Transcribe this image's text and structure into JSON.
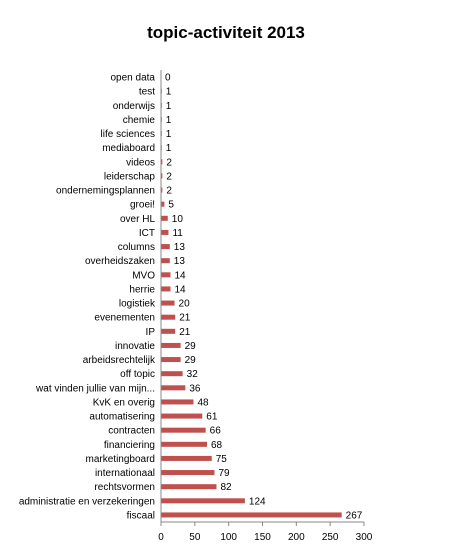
{
  "chart_data": {
    "type": "bar",
    "orientation": "horizontal",
    "title": "topic-activiteit 2013",
    "xlabel": "",
    "ylabel": "",
    "xlim": [
      0,
      300
    ],
    "xticks": [
      0,
      50,
      100,
      150,
      200,
      250,
      300
    ],
    "grid": false,
    "legend": "none",
    "bar_color": "#c0504d",
    "categories": [
      "open data",
      "test",
      "onderwijs",
      "chemie",
      "life sciences",
      "mediaboard",
      "videos",
      "leiderschap",
      "ondernemingsplannen",
      "groei!",
      "over HL",
      "ICT",
      "columns",
      "overheidszaken",
      "MVO",
      "herrie",
      "logistiek",
      "evenementen",
      "IP",
      "innovatie",
      "arbeidsrechtelijk",
      "off topic",
      "wat vinden jullie van mijn...",
      "KvK en overig",
      "automatisering",
      "contracten",
      "financiering",
      "marketingboard",
      "internationaal",
      "rechtsvormen",
      "administratie en verzekeringen",
      "fiscaal"
    ],
    "values": [
      0,
      1,
      1,
      1,
      1,
      1,
      2,
      2,
      2,
      5,
      10,
      11,
      13,
      13,
      14,
      14,
      20,
      21,
      21,
      29,
      29,
      32,
      36,
      48,
      61,
      66,
      68,
      75,
      79,
      82,
      124,
      267
    ]
  }
}
